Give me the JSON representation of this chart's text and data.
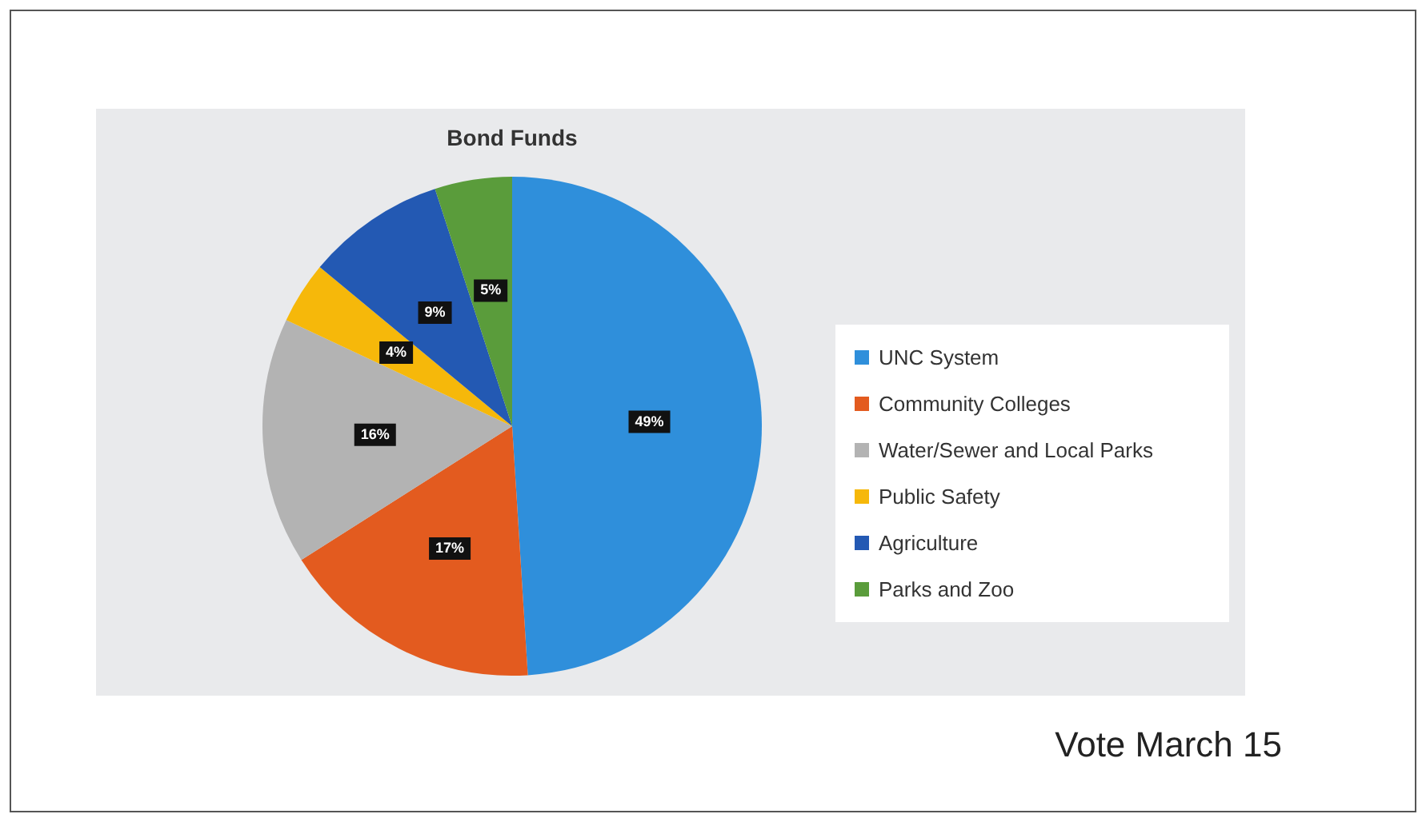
{
  "chart_data": {
    "type": "pie",
    "title": "Bond Funds",
    "categories": [
      "UNC System",
      "Community Colleges",
      "Water/Sewer and Local Parks",
      "Public Safety",
      "Agriculture",
      "Parks and Zoo"
    ],
    "values": [
      49,
      17,
      16,
      4,
      9,
      5
    ],
    "value_labels": [
      "49%",
      "17%",
      "16%",
      "4%",
      "9%",
      "5%"
    ],
    "colors": [
      "#2f8fdb",
      "#e35b1f",
      "#b3b3b3",
      "#f6b80a",
      "#2359b3",
      "#5a9c3b"
    ],
    "legend": "right",
    "annotations": [
      "Vote March 15"
    ]
  }
}
